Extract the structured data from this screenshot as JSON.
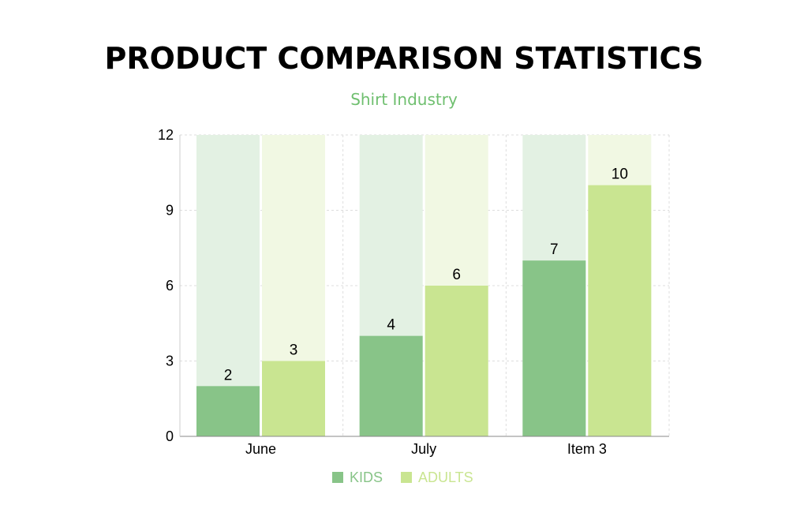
{
  "chart_data": {
    "type": "bar",
    "title": "PRODUCT COMPARISON STATISTICS",
    "subtitle": "Shirt Industry",
    "categories": [
      "June",
      "July",
      "Item 3"
    ],
    "series": [
      {
        "name": "KIDS",
        "values": [
          2,
          4,
          7
        ],
        "color": "#88c488",
        "bg_color": "#e3f1e3"
      },
      {
        "name": "ADULTS",
        "values": [
          3,
          6,
          10
        ],
        "color": "#c9e591",
        "bg_color": "#f1f8e3"
      }
    ],
    "ylim": [
      0,
      12
    ],
    "yticks": [
      0,
      3,
      6,
      9,
      12
    ],
    "grid": true,
    "legend_position": "bottom"
  }
}
